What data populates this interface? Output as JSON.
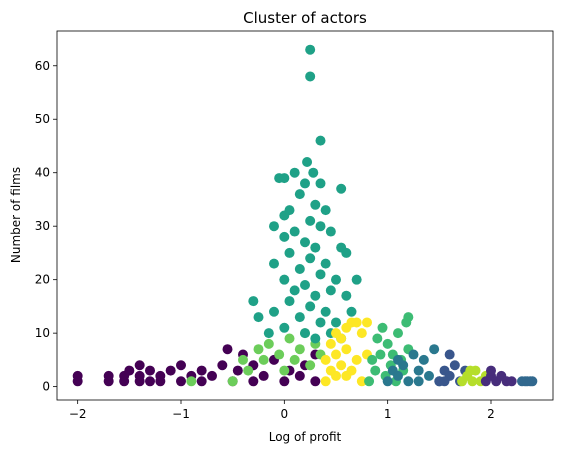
{
  "chart_data": {
    "type": "scatter",
    "title": "Cluster of actors",
    "xlabel": "Log of profit",
    "ylabel": "Number of films",
    "xlim": [
      -2.2,
      2.6
    ],
    "ylim": [
      -2.5,
      66.5
    ],
    "x_ticks": [
      -2,
      -1,
      0,
      1,
      2
    ],
    "y_ticks": [
      0,
      10,
      20,
      30,
      40,
      50,
      60
    ],
    "grid": false,
    "legend": "none",
    "clusters": [
      {
        "color": "#440154",
        "x_range": [
          -2.0,
          0.35
        ],
        "points": [
          [
            -2.0,
            1
          ],
          [
            -2.0,
            2
          ],
          [
            -1.7,
            1
          ],
          [
            -1.7,
            2
          ],
          [
            -1.55,
            1
          ],
          [
            -1.55,
            2
          ],
          [
            -1.5,
            3
          ],
          [
            -1.4,
            1
          ],
          [
            -1.4,
            2
          ],
          [
            -1.4,
            4
          ],
          [
            -1.3,
            1
          ],
          [
            -1.3,
            3
          ],
          [
            -1.2,
            1
          ],
          [
            -1.2,
            2
          ],
          [
            -1.1,
            3
          ],
          [
            -1.0,
            1
          ],
          [
            -1.0,
            4
          ],
          [
            -0.9,
            2
          ],
          [
            -0.8,
            1
          ],
          [
            -0.8,
            3
          ],
          [
            -0.7,
            2
          ],
          [
            -0.6,
            4
          ],
          [
            -0.55,
            7
          ],
          [
            -0.5,
            1
          ],
          [
            -0.45,
            3
          ],
          [
            -0.4,
            6
          ],
          [
            -0.3,
            1
          ],
          [
            -0.3,
            4
          ],
          [
            -0.2,
            2
          ],
          [
            -0.1,
            5
          ],
          [
            0.0,
            1
          ],
          [
            0.05,
            3
          ],
          [
            0.15,
            2
          ],
          [
            0.2,
            4
          ],
          [
            0.3,
            1
          ],
          [
            0.3,
            6
          ]
        ]
      },
      {
        "color": "#6ccd5a",
        "x_range": [
          -1.0,
          0.4
        ],
        "points": [
          [
            -0.9,
            1
          ],
          [
            -0.5,
            1
          ],
          [
            -0.4,
            5
          ],
          [
            -0.35,
            3
          ],
          [
            -0.25,
            7
          ],
          [
            -0.2,
            5
          ],
          [
            -0.15,
            8
          ],
          [
            -0.05,
            6
          ],
          [
            0.0,
            3
          ],
          [
            0.05,
            9
          ],
          [
            0.1,
            5
          ],
          [
            0.15,
            7
          ],
          [
            0.2,
            10
          ],
          [
            0.25,
            4
          ],
          [
            0.3,
            8
          ],
          [
            0.35,
            6
          ]
        ]
      },
      {
        "color": "#1fa187",
        "x_range": [
          -0.35,
          0.8
        ],
        "points": [
          [
            0.25,
            63
          ],
          [
            0.25,
            58
          ],
          [
            0.35,
            46
          ],
          [
            0.22,
            42
          ],
          [
            0.1,
            40
          ],
          [
            0.28,
            40
          ],
          [
            -0.05,
            39
          ],
          [
            0.0,
            39
          ],
          [
            0.2,
            38
          ],
          [
            0.55,
            37
          ],
          [
            0.35,
            38
          ],
          [
            0.15,
            36
          ],
          [
            0.3,
            34
          ],
          [
            0.05,
            33
          ],
          [
            0.4,
            33
          ],
          [
            0.0,
            32
          ],
          [
            0.25,
            31
          ],
          [
            0.35,
            30
          ],
          [
            -0.1,
            30
          ],
          [
            0.1,
            29
          ],
          [
            0.45,
            29
          ],
          [
            0.0,
            28
          ],
          [
            0.2,
            27
          ],
          [
            0.3,
            26
          ],
          [
            0.55,
            26
          ],
          [
            0.6,
            25
          ],
          [
            0.05,
            25
          ],
          [
            0.25,
            24
          ],
          [
            0.4,
            23
          ],
          [
            -0.1,
            23
          ],
          [
            0.15,
            22
          ],
          [
            0.35,
            21
          ],
          [
            0.5,
            20
          ],
          [
            0.0,
            20
          ],
          [
            0.7,
            20
          ],
          [
            0.2,
            19
          ],
          [
            0.45,
            18
          ],
          [
            0.1,
            18
          ],
          [
            0.3,
            17
          ],
          [
            0.6,
            17
          ],
          [
            -0.3,
            16
          ],
          [
            0.05,
            16
          ],
          [
            0.25,
            15
          ],
          [
            0.4,
            14
          ],
          [
            0.65,
            14
          ],
          [
            -0.1,
            14
          ],
          [
            0.15,
            13
          ],
          [
            0.35,
            12
          ],
          [
            -0.25,
            13
          ],
          [
            0.5,
            12
          ],
          [
            0.0,
            11
          ],
          [
            0.2,
            10
          ],
          [
            0.45,
            10
          ],
          [
            -0.15,
            10
          ],
          [
            0.3,
            9
          ],
          [
            0.55,
            9
          ]
        ]
      },
      {
        "color": "#fde725",
        "x_range": [
          0.35,
          0.85
        ],
        "points": [
          [
            0.4,
            1
          ],
          [
            0.45,
            3
          ],
          [
            0.5,
            6
          ],
          [
            0.55,
            9
          ],
          [
            0.6,
            11
          ],
          [
            0.65,
            12
          ],
          [
            0.7,
            12
          ],
          [
            0.75,
            10
          ],
          [
            0.8,
            12
          ],
          [
            0.45,
            8
          ],
          [
            0.5,
            2
          ],
          [
            0.55,
            4
          ],
          [
            0.6,
            7
          ],
          [
            0.65,
            3
          ],
          [
            0.7,
            5
          ],
          [
            0.75,
            1
          ],
          [
            0.8,
            6
          ],
          [
            0.4,
            5
          ],
          [
            0.5,
            10
          ],
          [
            0.6,
            2
          ]
        ]
      },
      {
        "color": "#3dbc74",
        "x_range": [
          0.8,
          1.2
        ],
        "points": [
          [
            0.82,
            1
          ],
          [
            0.85,
            5
          ],
          [
            0.9,
            9
          ],
          [
            0.95,
            11
          ],
          [
            1.0,
            8
          ],
          [
            1.05,
            6
          ],
          [
            1.1,
            10
          ],
          [
            1.15,
            3
          ],
          [
            1.2,
            7
          ],
          [
            0.88,
            3
          ],
          [
            0.93,
            6
          ],
          [
            0.98,
            2
          ],
          [
            1.03,
            4
          ],
          [
            1.08,
            1
          ],
          [
            1.13,
            5
          ],
          [
            1.18,
            12
          ],
          [
            1.2,
            13
          ]
        ]
      },
      {
        "color": "#2a788e",
        "x_range": [
          1.0,
          1.5
        ],
        "points": [
          [
            1.0,
            1
          ],
          [
            1.05,
            3
          ],
          [
            1.1,
            2
          ],
          [
            1.15,
            4
          ],
          [
            1.2,
            1
          ],
          [
            1.25,
            6
          ],
          [
            1.3,
            3
          ],
          [
            1.35,
            5
          ],
          [
            1.4,
            2
          ],
          [
            1.45,
            7
          ],
          [
            1.5,
            1
          ],
          [
            1.1,
            5
          ],
          [
            1.3,
            1
          ]
        ]
      },
      {
        "color": "#39568c",
        "x_range": [
          1.5,
          1.75
        ],
        "points": [
          [
            1.5,
            1
          ],
          [
            1.55,
            3
          ],
          [
            1.6,
            2
          ],
          [
            1.65,
            4
          ],
          [
            1.7,
            1
          ],
          [
            1.75,
            3
          ],
          [
            1.6,
            6
          ],
          [
            1.55,
            1
          ]
        ]
      },
      {
        "color": "#b5de2b",
        "x_range": [
          1.7,
          1.95
        ],
        "points": [
          [
            1.72,
            1
          ],
          [
            1.77,
            2
          ],
          [
            1.82,
            1
          ],
          [
            1.85,
            3
          ],
          [
            1.9,
            1
          ],
          [
            1.95,
            2
          ],
          [
            1.8,
            3
          ]
        ]
      },
      {
        "color": "#472d7b",
        "x_range": [
          1.95,
          2.2
        ],
        "points": [
          [
            1.95,
            1
          ],
          [
            2.0,
            2
          ],
          [
            2.05,
            1
          ],
          [
            2.1,
            2
          ],
          [
            2.15,
            1
          ],
          [
            2.2,
            1
          ],
          [
            2.0,
            3
          ]
        ]
      },
      {
        "color": "#31688e",
        "x_range": [
          2.3,
          2.4
        ],
        "points": [
          [
            2.3,
            1
          ],
          [
            2.33,
            1
          ],
          [
            2.35,
            1
          ],
          [
            2.38,
            1
          ],
          [
            2.4,
            1
          ]
        ]
      }
    ]
  }
}
